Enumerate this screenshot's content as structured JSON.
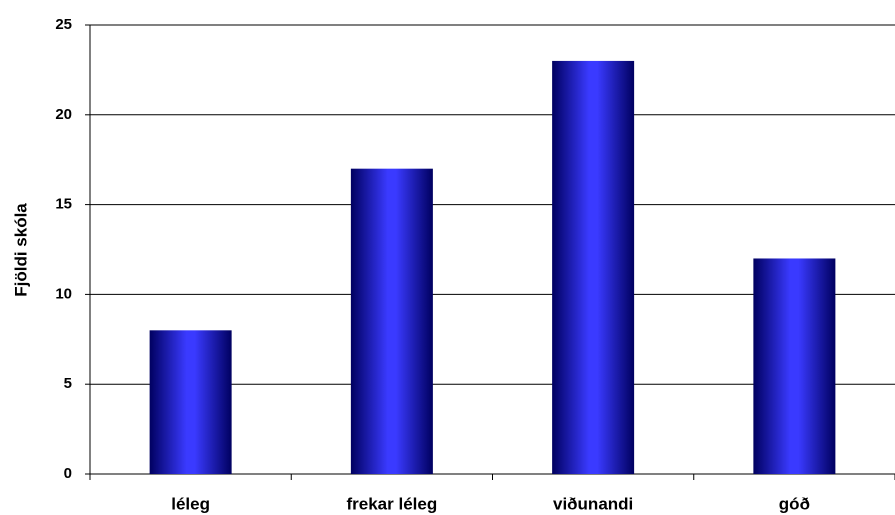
{
  "chart_data": {
    "type": "bar",
    "y_label": "Fjöldi skóla",
    "categories": [
      "léleg",
      "frekar léleg",
      "viðunandi",
      "góð"
    ],
    "values": [
      8,
      17,
      23,
      12
    ],
    "color": "#3a3aff",
    "ylim": [
      0,
      25
    ],
    "yticks": [
      0,
      5,
      10,
      15,
      20,
      25
    ],
    "grid": true
  }
}
